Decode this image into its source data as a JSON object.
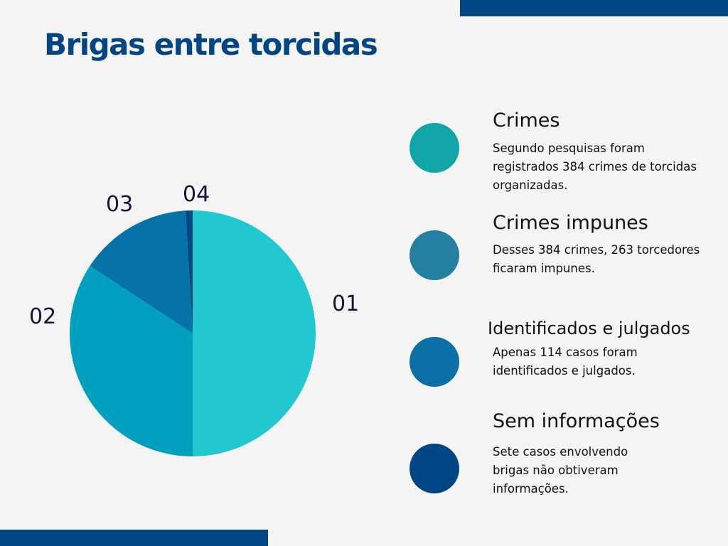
{
  "page": {
    "title": "Brigas entre torcidas",
    "colors": {
      "brand": "#004684",
      "background": "#f4f4f4"
    }
  },
  "legend": [
    {
      "id": "01",
      "title": "Crimes",
      "description": "Segundo pesquisas foram registrados 384 crimes de torcidas organizadas.",
      "color": "#10a5a7"
    },
    {
      "id": "02",
      "title": "Crimes impunes",
      "description": "Desses 384 crimes, 263 torcedores ficaram impunes.",
      "color": "#2380a0"
    },
    {
      "id": "03",
      "title": "Identificados e julgados",
      "description": "Apenas 114 casos foram identificados e julgados.",
      "color": "#0a70a6"
    },
    {
      "id": "04",
      "title": "Sem informações",
      "description": "Sete casos envolvendo brigas não obtiveram informações.",
      "color": "#004684"
    }
  ],
  "chart_data": {
    "type": "pie",
    "title": "Brigas entre torcidas",
    "categories": [
      "01",
      "02",
      "03",
      "04"
    ],
    "series_names": [
      "Crimes",
      "Crimes impunes",
      "Identificados e julgados",
      "Sem informações"
    ],
    "values": [
      384,
      263,
      114,
      7
    ],
    "colors": [
      "#22c8cf",
      "#01a0bf",
      "#0772a8",
      "#004684"
    ],
    "start_angle_deg": 0,
    "direction": "clockwise",
    "legend_position": "right"
  }
}
